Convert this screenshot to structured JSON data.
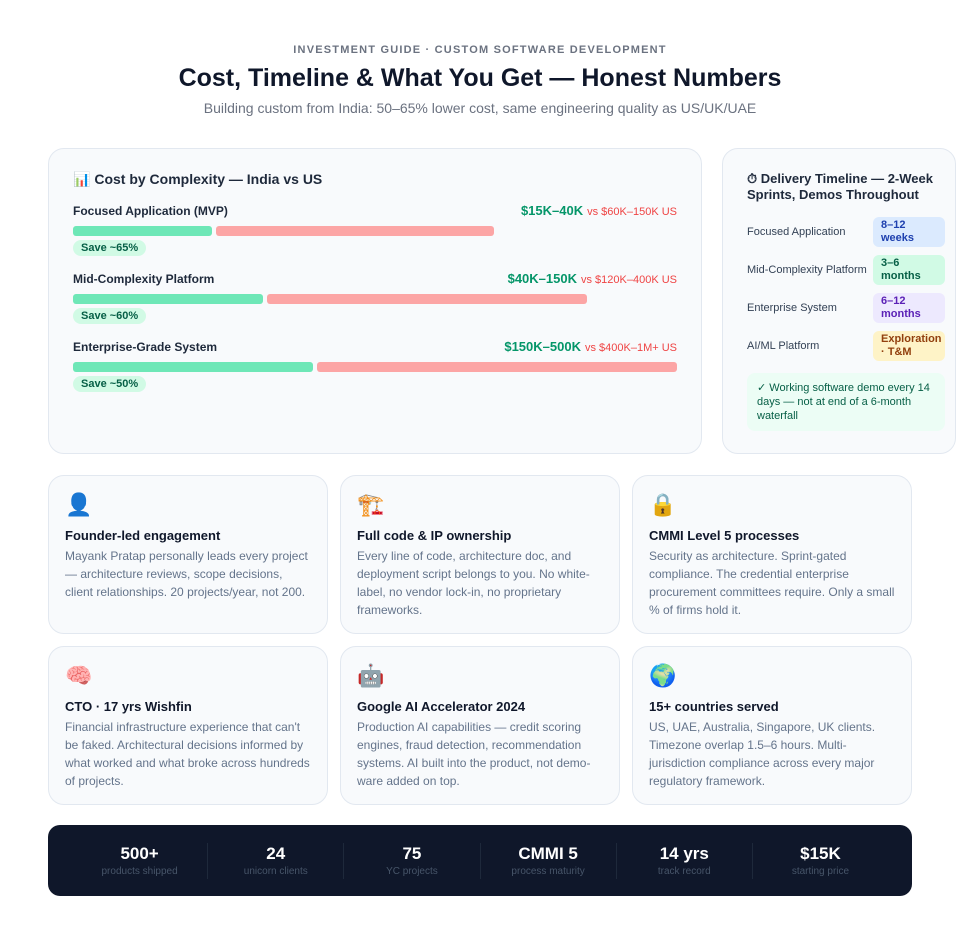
{
  "header": {
    "eyebrow": "INVESTMENT GUIDE · CUSTOM SOFTWARE DEVELOPMENT",
    "title": "Cost, Timeline & What You Get — Honest Numbers",
    "subtitle": "Building custom from India: 50–65% lower cost, same engineering quality as US/UK/UAE"
  },
  "cost": {
    "icon": "📊",
    "title": "Cost by Complexity — India vs US",
    "colors": {
      "india": "#6ee7b7",
      "us": "#fca5a5"
    },
    "rows": [
      {
        "name": "Focused Application (MVP)",
        "india": "$15K–40K",
        "us": "vs $60K–150K US",
        "save": "Save ~65%",
        "india_pct": 23,
        "us_pct": 46
      },
      {
        "name": "Mid-Complexity Platform",
        "india": "$40K–150K",
        "us": "vs $120K–400K US",
        "save": "Save ~60%",
        "india_pct": 31.5,
        "us_pct": 53
      },
      {
        "name": "Enterprise-Grade System",
        "india": "$150K–500K",
        "us": "vs $400K–1M+ US",
        "save": "Save ~50%",
        "india_pct": 40,
        "us_pct": 60
      }
    ]
  },
  "timeline": {
    "icon": "⏱",
    "title": "Delivery Timeline — 2-Week Sprints, Demos Throughout",
    "rows": [
      {
        "label": "Focused Application",
        "value": "8–12 weeks",
        "bg": "#dbeafe",
        "fg": "#1e40af"
      },
      {
        "label": "Mid-Complexity Platform",
        "value": "3–6 months",
        "bg": "#d1fae5",
        "fg": "#065f46"
      },
      {
        "label": "Enterprise System",
        "value": "6–12 months",
        "bg": "#ede9fe",
        "fg": "#5b21b6"
      },
      {
        "label": "AI/ML Platform",
        "value": "Exploration · T&M",
        "bg": "#fef3c7",
        "fg": "#92400e"
      }
    ],
    "note": "✓ Working software demo every 14 days — not at end of a 6-month waterfall"
  },
  "features": [
    {
      "icon": "👤",
      "title": "Founder-led engagement",
      "desc": "Mayank Pratap personally leads every project — architecture reviews, scope decisions, client relationships. 20 projects/year, not 200."
    },
    {
      "icon": "🏗️",
      "title": "Full code & IP ownership",
      "desc": "Every line of code, architecture doc, and deployment script belongs to you. No white-label, no vendor lock-in, no proprietary frameworks."
    },
    {
      "icon": "🔒",
      "title": "CMMI Level 5 processes",
      "desc": "Security as architecture. Sprint-gated compliance. The credential enterprise procurement committees require. Only a small % of firms hold it."
    },
    {
      "icon": "🧠",
      "title": "CTO · 17 yrs Wishfin",
      "desc": "Financial infrastructure experience that can't be faked. Architectural decisions informed by what worked and what broke across hundreds of projects."
    },
    {
      "icon": "🤖",
      "title": "Google AI Accelerator 2024",
      "desc": "Production AI capabilities — credit scoring engines, fraud detection, recommendation systems. AI built into the product, not demo-ware added on top."
    },
    {
      "icon": "🌍",
      "title": "15+ countries served",
      "desc": "US, UAE, Australia, Singapore, UK clients. Timezone overlap 1.5–6 hours. Multi-jurisdiction compliance across every major regulatory framework."
    }
  ],
  "stats": [
    {
      "value": "500+",
      "label": "products shipped"
    },
    {
      "value": "24",
      "label": "unicorn clients"
    },
    {
      "value": "75",
      "label": "YC projects"
    },
    {
      "value": "CMMI 5",
      "label": "process maturity"
    },
    {
      "value": "14 yrs",
      "label": "track record"
    },
    {
      "value": "$15K",
      "label": "starting price"
    }
  ]
}
